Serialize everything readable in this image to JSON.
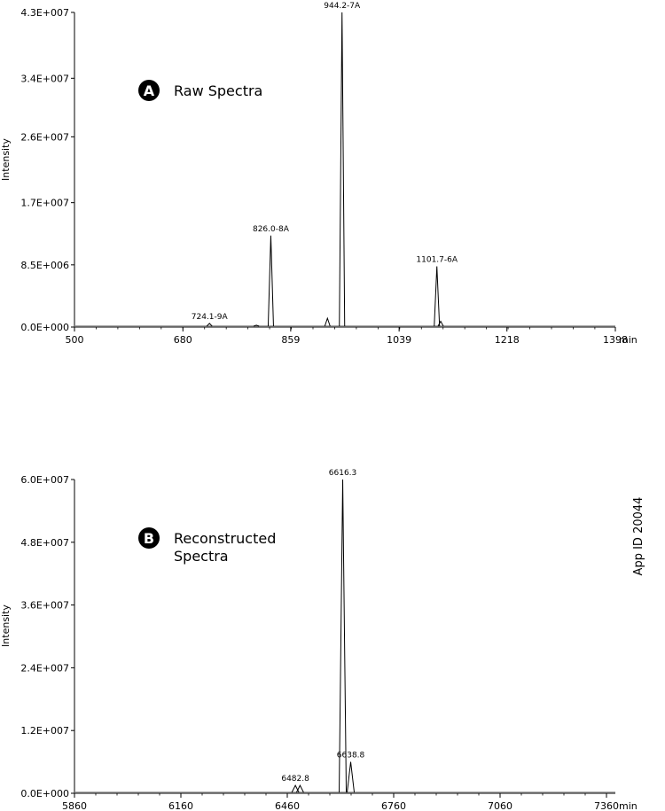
{
  "chart_data": [
    {
      "type": "line",
      "panel_letter": "A",
      "title": "Raw Spectra",
      "xlabel": "min",
      "ylabel": "Intensity",
      "xlim": [
        500,
        1398
      ],
      "ylim": [
        0,
        43000000
      ],
      "x_ticks": [
        500,
        680,
        859,
        1039,
        1218,
        1398
      ],
      "x_tick_labels": [
        "500",
        "680",
        "859",
        "1039",
        "1218",
        "1398"
      ],
      "y_ticks": [
        0,
        8500000,
        17000000,
        26000000,
        34000000,
        43000000
      ],
      "y_tick_labels": [
        "0.0E+000",
        "8.5E+006",
        "1.7E+007",
        "2.6E+007",
        "3.4E+007",
        "4.3E+007"
      ],
      "peaks": [
        {
          "x": 724.1,
          "y": 500000,
          "label": "724.1-9A"
        },
        {
          "x": 802,
          "y": 250000,
          "label": ""
        },
        {
          "x": 826.0,
          "y": 12500000,
          "label": "826.0-8A"
        },
        {
          "x": 920,
          "y": 1200000,
          "label": ""
        },
        {
          "x": 944.2,
          "y": 43000000,
          "label": "944.2-7A"
        },
        {
          "x": 1101.7,
          "y": 8300000,
          "label": "1101.7-6A"
        },
        {
          "x": 1108,
          "y": 800000,
          "label": ""
        }
      ],
      "grid": false
    },
    {
      "type": "line",
      "panel_letter": "B",
      "title": "Reconstructed Spectra",
      "title_lines": [
        "Reconstructed",
        "Spectra"
      ],
      "xlabel": "min",
      "ylabel": "Intensity",
      "xlim": [
        5860,
        7385
      ],
      "ylim": [
        0,
        60000000
      ],
      "x_ticks": [
        5860,
        6160,
        6460,
        6760,
        7060,
        7360
      ],
      "x_tick_labels": [
        "5860",
        "6160",
        "6460",
        "6760",
        "7060",
        "7360"
      ],
      "y_ticks": [
        0,
        12000000,
        24000000,
        36000000,
        48000000,
        60000000
      ],
      "y_tick_labels": [
        "0.0E+000",
        "1.2E+007",
        "2.4E+007",
        "3.6E+007",
        "4.8E+007",
        "6.0E+007"
      ],
      "peaks": [
        {
          "x": 6482.8,
          "y": 1500000,
          "label": "6482.8"
        },
        {
          "x": 6496,
          "y": 1500000,
          "label": ""
        },
        {
          "x": 6616.3,
          "y": 60000000,
          "label": "6616.3"
        },
        {
          "x": 6638.8,
          "y": 6000000,
          "label": "6638.8"
        }
      ],
      "grid": false
    }
  ],
  "side_label": "App ID 20044"
}
